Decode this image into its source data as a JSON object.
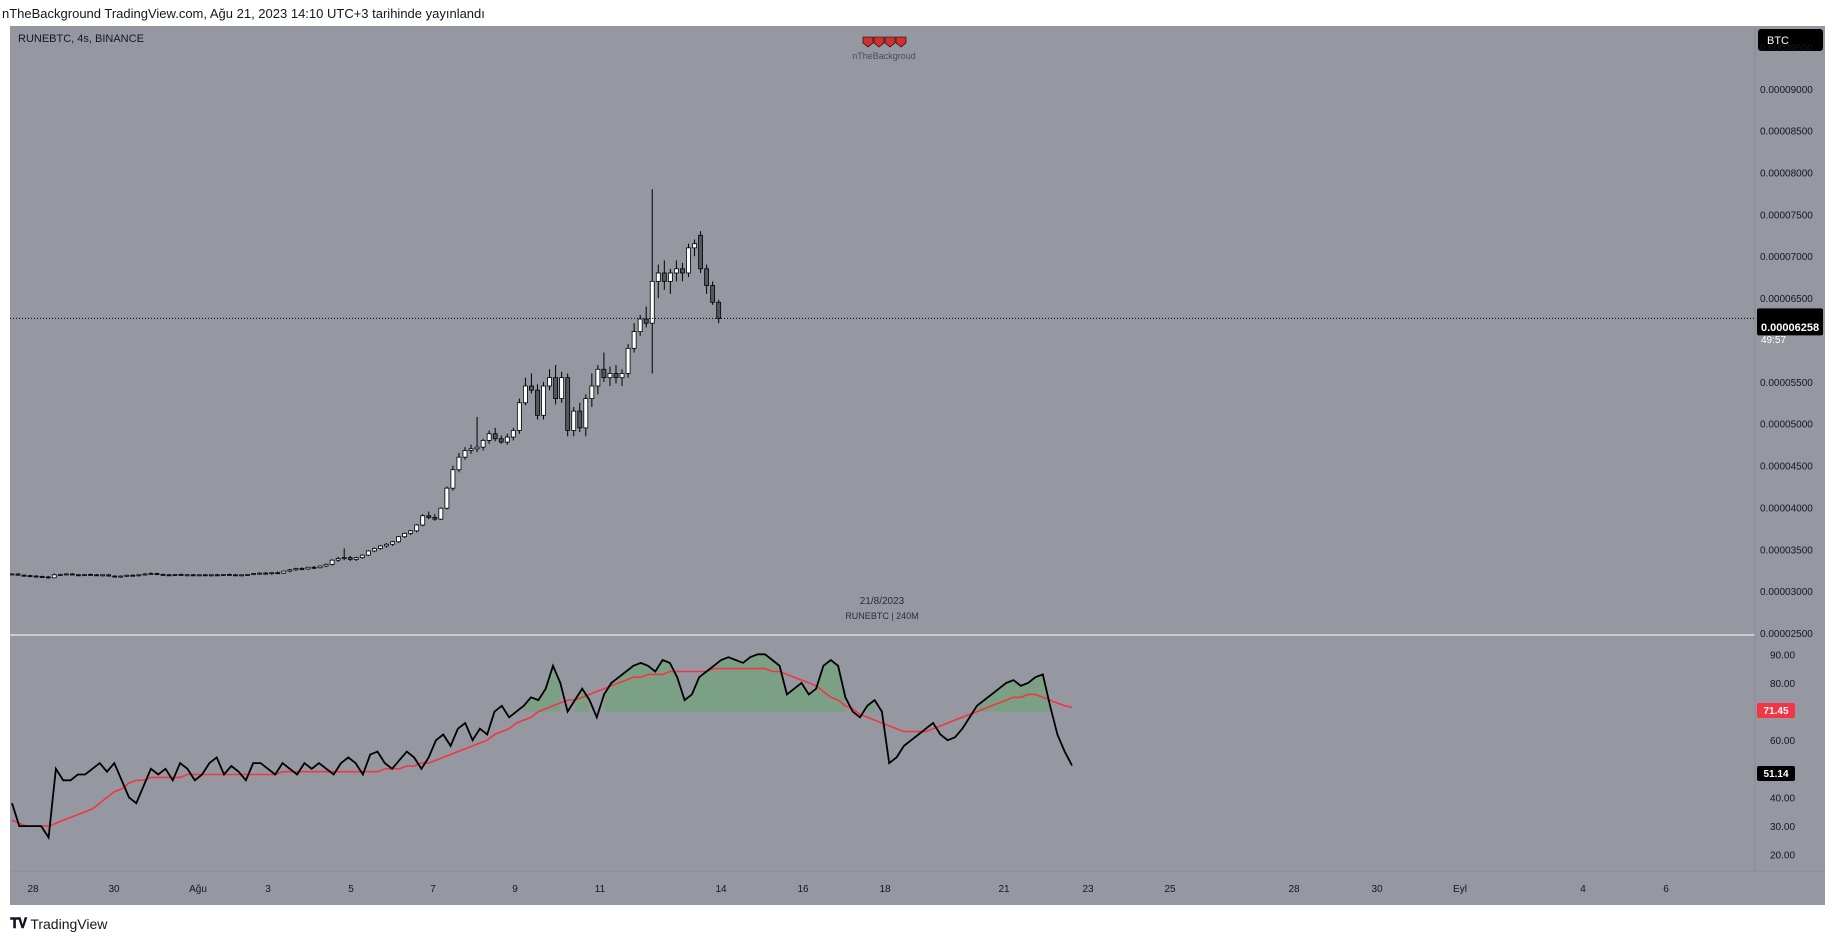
{
  "header": {
    "published_line": "nTheBackground TradingView.com, Ağu 21, 2023 14:10 UTC+3 tarihinde yayınlandı"
  },
  "chart_header": {
    "symbol_line": "RUNEBTC, 4s, BINANCE",
    "center_author": "nTheBackgroud",
    "currency_button": "BTC",
    "watermark_date": "21/8/2023",
    "watermark_symbol": "RUNEBTC | 240M"
  },
  "price_axis": {
    "ticks": [
      "0.00009500",
      "0.00009000",
      "0.00008500",
      "0.00008000",
      "0.00007500",
      "0.00007000",
      "0.00006500",
      "0.00005500",
      "0.00005000",
      "0.00004500",
      "0.00004000",
      "0.00003500",
      "0.00003000",
      "0.00002500"
    ],
    "last_price": "0.00006258",
    "countdown": "49:57"
  },
  "rsi_axis": {
    "ticks": [
      "90.00",
      "80.00",
      "60.00",
      "40.00",
      "30.00",
      "20.00"
    ],
    "ma_value": "71.45",
    "rsi_value": "51.14"
  },
  "time_axis": {
    "labels": [
      "28",
      "30",
      "Ağu",
      "3",
      "5",
      "7",
      "9",
      "11",
      "14",
      "16",
      "18",
      "21",
      "23",
      "25",
      "28",
      "30",
      "Eyl",
      "4",
      "6"
    ]
  },
  "footer": {
    "brand": "TradingView"
  },
  "colors": {
    "background": "#9598a1",
    "candle_up": "#ffffff",
    "candle_down": "#555760",
    "wick": "#000000",
    "rsi_line": "#000000",
    "rsi_ma": "#f23645",
    "overbought_fill": "#4caf50",
    "oversold_fill": "#f23645",
    "badge_dark": "#000000",
    "badge_red": "#f23645"
  },
  "chart_data": [
    {
      "type": "candlestick",
      "title": "RUNEBTC, 4s, BINANCE",
      "ylim": [
        2.5e-05,
        9.75e-05
      ],
      "interval": "4h",
      "candles": [
        [
          3.2e-05,
          3.215e-05,
          3.19e-05,
          3.205e-05
        ],
        [
          3.205e-05,
          3.215e-05,
          3.185e-05,
          3.19e-05
        ],
        [
          3.19e-05,
          3.2e-05,
          3.175e-05,
          3.185e-05
        ],
        [
          3.185e-05,
          3.195e-05,
          3.17e-05,
          3.18e-05
        ],
        [
          3.18e-05,
          3.19e-05,
          3.165e-05,
          3.175e-05
        ],
        [
          3.175e-05,
          3.185e-05,
          3.16e-05,
          3.17e-05
        ],
        [
          3.17e-05,
          3.18e-05,
          3.15e-05,
          3.16e-05
        ],
        [
          3.16e-05,
          3.21e-05,
          3.155e-05,
          3.195e-05
        ],
        [
          3.195e-05,
          3.21e-05,
          3.185e-05,
          3.2e-05
        ],
        [
          3.2e-05,
          3.215e-05,
          3.19e-05,
          3.205e-05
        ],
        [
          3.205e-05,
          3.215e-05,
          3.19e-05,
          3.195e-05
        ],
        [
          3.195e-05,
          3.205e-05,
          3.18e-05,
          3.19e-05
        ],
        [
          3.19e-05,
          3.205e-05,
          3.18e-05,
          3.2e-05
        ],
        [
          3.2e-05,
          3.21e-05,
          3.185e-05,
          3.195e-05
        ],
        [
          3.195e-05,
          3.205e-05,
          3.18e-05,
          3.185e-05
        ],
        [
          3.185e-05,
          3.2e-05,
          3.175e-05,
          3.195e-05
        ],
        [
          3.195e-05,
          3.205e-05,
          3.175e-05,
          3.18e-05
        ],
        [
          3.18e-05,
          3.19e-05,
          3.165e-05,
          3.17e-05
        ],
        [
          3.17e-05,
          3.185e-05,
          3.16e-05,
          3.18e-05
        ],
        [
          3.18e-05,
          3.195e-05,
          3.17e-05,
          3.19e-05
        ],
        [
          3.19e-05,
          3.2e-05,
          3.175e-05,
          3.185e-05
        ],
        [
          3.185e-05,
          3.2e-05,
          3.175e-05,
          3.195e-05
        ],
        [
          3.195e-05,
          3.215e-05,
          3.185e-05,
          3.205e-05
        ],
        [
          3.205e-05,
          3.225e-05,
          3.195e-05,
          3.21e-05
        ],
        [
          3.21e-05,
          3.22e-05,
          3.19e-05,
          3.2e-05
        ],
        [
          3.2e-05,
          3.21e-05,
          3.185e-05,
          3.195e-05
        ],
        [
          3.195e-05,
          3.205e-05,
          3.185e-05,
          3.19e-05
        ],
        [
          3.19e-05,
          3.205e-05,
          3.18e-05,
          3.2e-05
        ],
        [
          3.2e-05,
          3.21e-05,
          3.185e-05,
          3.19e-05
        ],
        [
          3.19e-05,
          3.205e-05,
          3.18e-05,
          3.195e-05
        ],
        [
          3.195e-05,
          3.205e-05,
          3.185e-05,
          3.19e-05
        ],
        [
          3.19e-05,
          3.2e-05,
          3.18e-05,
          3.195e-05
        ],
        [
          3.195e-05,
          3.205e-05,
          3.18e-05,
          3.185e-05
        ],
        [
          3.185e-05,
          3.2e-05,
          3.175e-05,
          3.195e-05
        ],
        [
          3.195e-05,
          3.205e-05,
          3.18e-05,
          3.19e-05
        ],
        [
          3.19e-05,
          3.205e-05,
          3.18e-05,
          3.2e-05
        ],
        [
          3.2e-05,
          3.21e-05,
          3.185e-05,
          3.195e-05
        ],
        [
          3.195e-05,
          3.205e-05,
          3.18e-05,
          3.185e-05
        ],
        [
          3.185e-05,
          3.2e-05,
          3.175e-05,
          3.195e-05
        ],
        [
          3.195e-05,
          3.205e-05,
          3.185e-05,
          3.2e-05
        ],
        [
          3.2e-05,
          3.215e-05,
          3.19e-05,
          3.21e-05
        ],
        [
          3.21e-05,
          3.225e-05,
          3.195e-05,
          3.215e-05
        ],
        [
          3.215e-05,
          3.23e-05,
          3.2e-05,
          3.21e-05
        ],
        [
          3.21e-05,
          3.225e-05,
          3.195e-05,
          3.22e-05
        ],
        [
          3.22e-05,
          3.235e-05,
          3.205e-05,
          3.215e-05
        ],
        [
          3.215e-05,
          3.245e-05,
          3.205e-05,
          3.24e-05
        ],
        [
          3.24e-05,
          3.265e-05,
          3.225e-05,
          3.255e-05
        ],
        [
          3.255e-05,
          3.28e-05,
          3.24e-05,
          3.27e-05
        ],
        [
          3.27e-05,
          3.285e-05,
          3.25e-05,
          3.265e-05
        ],
        [
          3.265e-05,
          3.29e-05,
          3.255e-05,
          3.285e-05
        ],
        [
          3.285e-05,
          3.3e-05,
          3.265e-05,
          3.28e-05
        ],
        [
          3.28e-05,
          3.305e-05,
          3.27e-05,
          3.3e-05
        ],
        [
          3.3e-05,
          3.33e-05,
          3.285e-05,
          3.32e-05
        ],
        [
          3.32e-05,
          3.38e-05,
          3.305e-05,
          3.37e-05
        ],
        [
          3.37e-05,
          3.41e-05,
          3.35e-05,
          3.39e-05
        ],
        [
          3.39e-05,
          3.51e-05,
          3.37e-05,
          3.4e-05
        ],
        [
          3.4e-05,
          3.42e-05,
          3.36e-05,
          3.38e-05
        ],
        [
          3.38e-05,
          3.41e-05,
          3.36e-05,
          3.4e-05
        ],
        [
          3.4e-05,
          3.44e-05,
          3.385e-05,
          3.43e-05
        ],
        [
          3.43e-05,
          3.49e-05,
          3.42e-05,
          3.48e-05
        ],
        [
          3.48e-05,
          3.52e-05,
          3.465e-05,
          3.51e-05
        ],
        [
          3.51e-05,
          3.55e-05,
          3.495e-05,
          3.54e-05
        ],
        [
          3.54e-05,
          3.575e-05,
          3.52e-05,
          3.56e-05
        ],
        [
          3.56e-05,
          3.6e-05,
          3.54e-05,
          3.59e-05
        ],
        [
          3.59e-05,
          3.66e-05,
          3.575e-05,
          3.65e-05
        ],
        [
          3.65e-05,
          3.7e-05,
          3.635e-05,
          3.69e-05
        ],
        [
          3.69e-05,
          3.73e-05,
          3.67e-05,
          3.72e-05
        ],
        [
          3.72e-05,
          3.8e-05,
          3.7e-05,
          3.79e-05
        ],
        [
          3.79e-05,
          3.92e-05,
          3.775e-05,
          3.9e-05
        ],
        [
          3.9e-05,
          3.95e-05,
          3.86e-05,
          3.88e-05
        ],
        [
          3.88e-05,
          3.92e-05,
          3.84e-05,
          3.86e-05
        ],
        [
          3.86e-05,
          4e-05,
          3.85e-05,
          3.99e-05
        ],
        [
          3.99e-05,
          4.25e-05,
          3.975e-05,
          4.23e-05
        ],
        [
          4.23e-05,
          4.5e-05,
          4.2e-05,
          4.45e-05
        ],
        [
          4.45e-05,
          4.65e-05,
          4.42e-05,
          4.6e-05
        ],
        [
          4.6e-05,
          4.72e-05,
          4.57e-05,
          4.68e-05
        ],
        [
          4.68e-05,
          4.75e-05,
          4.64e-05,
          4.7e-05
        ],
        [
          4.7e-05,
          5.08e-05,
          4.66e-05,
          4.72e-05
        ],
        [
          4.72e-05,
          4.82e-05,
          4.68e-05,
          4.8e-05
        ],
        [
          4.8e-05,
          4.92e-05,
          4.76e-05,
          4.88e-05
        ],
        [
          4.88e-05,
          4.95e-05,
          4.79e-05,
          4.82e-05
        ],
        [
          4.82e-05,
          4.86e-05,
          4.76e-05,
          4.78e-05
        ],
        [
          4.78e-05,
          4.88e-05,
          4.75e-05,
          4.84e-05
        ],
        [
          4.84e-05,
          4.95e-05,
          4.8e-05,
          4.92e-05
        ],
        [
          4.92e-05,
          5.3e-05,
          4.88e-05,
          5.25e-05
        ],
        [
          5.25e-05,
          5.55e-05,
          5.22e-05,
          5.45e-05
        ],
        [
          5.45e-05,
          5.6e-05,
          5.36e-05,
          5.4e-05
        ],
        [
          5.4e-05,
          5.47e-05,
          5.05e-05,
          5.1e-05
        ],
        [
          5.1e-05,
          5.5e-05,
          5.05e-05,
          5.45e-05
        ],
        [
          5.45e-05,
          5.65e-05,
          5.4e-05,
          5.55e-05
        ],
        [
          5.55e-05,
          5.7e-05,
          5.23e-05,
          5.3e-05
        ],
        [
          5.3e-05,
          5.62e-05,
          5.25e-05,
          5.55e-05
        ],
        [
          5.55e-05,
          5.6e-05,
          4.85e-05,
          4.92e-05
        ],
        [
          4.92e-05,
          5.2e-05,
          4.85e-05,
          5.15e-05
        ],
        [
          5.15e-05,
          5.25e-05,
          4.9e-05,
          4.95e-05
        ],
        [
          4.95e-05,
          5.35e-05,
          4.85e-05,
          5.3e-05
        ],
        [
          5.3e-05,
          5.6e-05,
          5.2e-05,
          5.45e-05
        ],
        [
          5.45e-05,
          5.7e-05,
          5.35e-05,
          5.65e-05
        ],
        [
          5.65e-05,
          5.85e-05,
          5.5e-05,
          5.55e-05
        ],
        [
          5.55e-05,
          5.68e-05,
          5.45e-05,
          5.6e-05
        ],
        [
          5.6e-05,
          5.7e-05,
          5.48e-05,
          5.55e-05
        ],
        [
          5.55e-05,
          5.65e-05,
          5.45e-05,
          5.6e-05
        ],
        [
          5.6e-05,
          5.95e-05,
          5.55e-05,
          5.9e-05
        ],
        [
          5.9e-05,
          6.2e-05,
          5.85e-05,
          6.1e-05
        ],
        [
          6.1e-05,
          6.3e-05,
          6.05e-05,
          6.25e-05
        ],
        [
          6.25e-05,
          6.4e-05,
          6.15e-05,
          6.2e-05
        ],
        [
          6.2e-05,
          7.8e-05,
          5.6e-05,
          6.7e-05
        ],
        [
          6.7e-05,
          6.9e-05,
          6.5e-05,
          6.8e-05
        ],
        [
          6.8e-05,
          6.95e-05,
          6.6e-05,
          6.7e-05
        ],
        [
          6.7e-05,
          6.85e-05,
          6.55e-05,
          6.8e-05
        ],
        [
          6.8e-05,
          6.95e-05,
          6.7e-05,
          6.85e-05
        ],
        [
          6.85e-05,
          6.92e-05,
          6.7e-05,
          6.8e-05
        ],
        [
          6.8e-05,
          7.15e-05,
          6.75e-05,
          7.1e-05
        ],
        [
          7.1e-05,
          7.2e-05,
          7e-05,
          7.15e-05
        ],
        [
          7.25e-05,
          7.3e-05,
          6.8e-05,
          6.85e-05
        ],
        [
          6.85e-05,
          6.9e-05,
          6.55e-05,
          6.65e-05
        ],
        [
          6.65e-05,
          6.7e-05,
          6.42e-05,
          6.45e-05
        ],
        [
          6.45e-05,
          6.48e-05,
          6.2e-05,
          6.258e-05
        ]
      ]
    },
    {
      "type": "line",
      "title": "RSI",
      "ylim": [
        15,
        95
      ],
      "bands": {
        "upper": 70,
        "lower": 30
      },
      "series": [
        {
          "key": "rsi",
          "values": [
            38,
            30,
            30,
            30,
            30,
            26,
            50,
            46,
            46,
            48,
            48,
            50,
            52,
            49,
            52,
            46,
            40,
            38,
            44,
            50,
            48,
            50,
            46,
            52,
            50,
            46,
            48,
            52,
            54,
            48,
            51,
            49,
            46,
            52,
            52,
            50,
            48,
            52,
            50,
            48,
            52,
            50,
            52,
            50,
            48,
            52,
            54,
            52,
            48,
            55,
            56,
            52,
            50,
            53,
            56,
            54,
            50,
            54,
            60,
            62,
            58,
            64,
            66,
            60,
            64,
            62,
            70,
            72,
            68,
            70,
            72,
            75,
            74,
            78,
            86,
            80,
            70,
            74,
            78,
            74,
            68,
            76,
            80,
            82,
            84,
            86,
            87,
            86,
            84,
            88,
            87,
            82,
            74,
            76,
            82,
            84,
            86,
            88,
            89,
            88,
            87,
            89,
            90,
            90,
            88,
            86,
            76,
            78,
            80,
            76,
            78,
            86,
            88,
            86,
            75,
            70,
            68,
            72,
            74,
            70,
            52,
            54,
            58,
            60,
            62,
            64,
            66,
            62,
            60,
            61,
            64,
            68,
            72,
            74,
            76,
            78,
            80,
            81,
            79,
            80,
            82,
            83,
            72,
            62,
            56,
            51.14
          ]
        },
        {
          "key": "rsi_ma",
          "values": [
            32,
            31,
            30,
            30,
            30,
            30,
            31,
            32,
            33,
            34,
            35,
            36,
            38,
            40,
            42,
            43,
            45,
            46,
            46,
            47,
            47,
            47,
            47,
            47,
            48,
            48,
            48,
            48,
            48,
            48,
            48,
            48,
            48,
            48,
            48,
            48,
            48,
            49,
            49,
            49,
            49,
            49,
            49,
            49,
            49,
            49,
            49,
            49,
            49,
            49,
            49,
            50,
            50,
            50,
            51,
            51,
            52,
            52,
            53,
            54,
            55,
            56,
            57,
            58,
            59,
            60,
            62,
            63,
            64,
            66,
            67,
            68,
            70,
            71,
            72,
            73,
            74,
            74,
            75,
            76,
            77,
            78,
            79,
            80,
            81,
            82,
            82,
            83,
            83,
            83,
            84,
            84,
            84,
            84,
            84,
            84,
            85,
            85,
            85,
            85,
            85,
            85,
            85,
            85,
            84,
            84,
            83,
            82,
            81,
            80,
            79,
            77,
            75,
            74,
            72,
            71,
            69,
            68,
            67,
            66,
            65,
            64,
            63,
            63,
            63,
            63,
            64,
            65,
            66,
            67,
            68,
            69,
            70,
            71,
            72,
            73,
            74,
            75,
            75,
            76,
            76,
            75,
            74,
            73,
            72,
            71.45
          ]
        }
      ]
    }
  ]
}
